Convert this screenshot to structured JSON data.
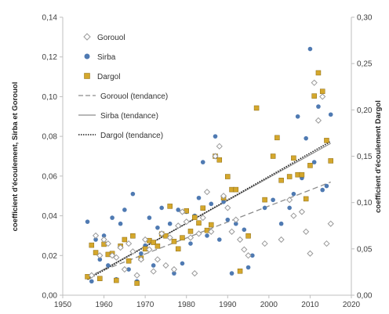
{
  "chart_data": {
    "type": "scatter",
    "title": "",
    "xlabel": "",
    "ylabel_left": "coefficient d'écoulement, Sirba et Gorouol",
    "ylabel_right": "coefficient d'écoulement Dargol",
    "xlim": [
      1950,
      2020
    ],
    "xticks": [
      "1950",
      "1960",
      "1970",
      "1980",
      "1990",
      "2000",
      "2010",
      "2020"
    ],
    "ylim_left": [
      0,
      0.14
    ],
    "yticks_left": [
      "0,00",
      "0,02",
      "0,04",
      "0,06",
      "0,08",
      "0,10",
      "0,12",
      "0,14"
    ],
    "ylim_right": [
      0,
      0.3
    ],
    "yticks_right": [
      "0,00",
      "0,05",
      "0,10",
      "0,15",
      "0,20",
      "0,25",
      "0,30"
    ],
    "grid": false,
    "legend_position": "top-left",
    "colors": {
      "gorouol": "#9a9a9a",
      "sirba": "#4f7ab2",
      "dargol": "#d4a72c",
      "gorouol_trend": "#8c8c8c",
      "sirba_trend": "#8c8c8c",
      "dargol_trend": "#1a1a1a"
    },
    "series": [
      {
        "name": "Gorouol",
        "marker": "diamond",
        "axis": "left",
        "x": [
          1957,
          1958,
          1959,
          1960,
          1961,
          1962,
          1963,
          1964,
          1965,
          1966,
          1967,
          1968,
          1969,
          1970,
          1971,
          1972,
          1973,
          1974,
          1975,
          1976,
          1977,
          1978,
          1979,
          1980,
          1981,
          1982,
          1983,
          1984,
          1985,
          1986,
          1987,
          1988,
          1989,
          1990,
          1991,
          1992,
          1993,
          1994,
          1995,
          1999,
          2003,
          2005,
          2006,
          2008,
          2009,
          2010,
          2011,
          2012,
          2013,
          2014,
          2015
        ],
        "y": [
          0.01,
          0.03,
          0.02,
          0.028,
          0.026,
          0.02,
          0.019,
          0.024,
          0.013,
          0.026,
          0.022,
          0.01,
          0.018,
          0.028,
          0.023,
          0.012,
          0.018,
          0.031,
          0.015,
          0.029,
          0.013,
          0.035,
          0.042,
          0.037,
          0.029,
          0.011,
          0.031,
          0.039,
          0.052,
          0.032,
          0.07,
          0.075,
          0.05,
          0.044,
          0.032,
          0.038,
          0.028,
          0.023,
          0.02,
          0.026,
          0.028,
          0.048,
          0.04,
          0.042,
          0.032,
          0.021,
          0.107,
          0.088,
          0.1,
          0.026,
          0.036
        ]
      },
      {
        "name": "Sirba",
        "marker": "circle",
        "axis": "left",
        "x": [
          1956,
          1957,
          1958,
          1959,
          1960,
          1961,
          1962,
          1963,
          1964,
          1965,
          1966,
          1967,
          1968,
          1969,
          1970,
          1971,
          1972,
          1973,
          1974,
          1975,
          1976,
          1977,
          1978,
          1979,
          1980,
          1981,
          1982,
          1983,
          1984,
          1985,
          1986,
          1987,
          1988,
          1989,
          1990,
          1991,
          1992,
          1993,
          1994,
          1995,
          1996,
          1999,
          2001,
          2003,
          2005,
          2006,
          2007,
          2008,
          2009,
          2010,
          2011,
          2012,
          2013,
          2014,
          2015
        ],
        "y": [
          0.037,
          0.007,
          0.028,
          0.018,
          0.03,
          0.015,
          0.039,
          0.008,
          0.036,
          0.043,
          0.013,
          0.051,
          0.007,
          0.021,
          0.025,
          0.039,
          0.015,
          0.034,
          0.044,
          0.03,
          0.036,
          0.011,
          0.043,
          0.016,
          0.042,
          0.026,
          0.04,
          0.049,
          0.067,
          0.03,
          0.046,
          0.08,
          0.028,
          0.047,
          0.038,
          0.011,
          0.036,
          0.012,
          0.033,
          0.014,
          0.02,
          0.044,
          0.048,
          0.036,
          0.044,
          0.051,
          0.09,
          0.059,
          0.079,
          0.124,
          0.067,
          0.095,
          0.053,
          0.055,
          0.091
        ]
      },
      {
        "name": "Dargol",
        "marker": "square",
        "axis": "right",
        "x": [
          1956,
          1957,
          1958,
          1959,
          1960,
          1961,
          1962,
          1963,
          1964,
          1965,
          1966,
          1967,
          1968,
          1969,
          1970,
          1971,
          1972,
          1973,
          1974,
          1975,
          1976,
          1977,
          1978,
          1979,
          1980,
          1981,
          1982,
          1983,
          1984,
          1985,
          1986,
          1987,
          1988,
          1989,
          1990,
          1991,
          1992,
          1993,
          1995,
          1997,
          1999,
          2001,
          2002,
          2003,
          2005,
          2006,
          2007,
          2008,
          2009,
          2010,
          2011,
          2012,
          2013,
          2014,
          2015
        ],
        "y": [
          0.02,
          0.054,
          0.046,
          0.018,
          0.055,
          0.044,
          0.045,
          0.016,
          0.053,
          0.06,
          0.037,
          0.064,
          0.013,
          0.04,
          0.05,
          0.059,
          0.057,
          0.053,
          0.066,
          0.064,
          0.096,
          0.058,
          0.05,
          0.062,
          0.091,
          0.069,
          0.084,
          0.078,
          0.094,
          0.07,
          0.076,
          0.15,
          0.146,
          0.105,
          0.128,
          0.114,
          0.114,
          0.026,
          0.064,
          0.202,
          0.103,
          0.15,
          0.17,
          0.124,
          0.128,
          0.148,
          0.13,
          0.13,
          0.104,
          0.14,
          0.215,
          0.24,
          0.22,
          0.167,
          0.145
        ]
      }
    ],
    "trendlines": [
      {
        "name": "Gorouol (tendance)",
        "style": "dashed",
        "axis": "left",
        "x": [
          1956,
          2015
        ],
        "y": [
          0.0095,
          0.057
        ]
      },
      {
        "name": "Sirba (tendance)",
        "style": "solid",
        "axis": "left",
        "x": [
          1956,
          2015
        ],
        "y": [
          0.0085,
          0.0765
        ]
      },
      {
        "name": "Dargol (tendance)",
        "style": "dotted",
        "axis": "right",
        "x": [
          1956,
          2015
        ],
        "y": [
          0.017,
          0.166
        ]
      }
    ],
    "legend": [
      {
        "label": "Gorouol",
        "symbol": "diamond"
      },
      {
        "label": "Sirba",
        "symbol": "circle"
      },
      {
        "label": "Dargol",
        "symbol": "square"
      },
      {
        "label": "Gorouol (tendance)",
        "symbol": "dashed"
      },
      {
        "label": "Sirba (tendance)",
        "symbol": "solid"
      },
      {
        "label": "Dargol (tendance)",
        "symbol": "dotted"
      }
    ]
  }
}
